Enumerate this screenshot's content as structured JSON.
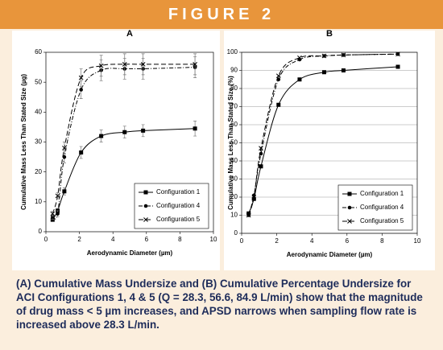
{
  "header": {
    "title": "FIGURE 2"
  },
  "chart_data": [
    {
      "type": "line",
      "title": "A",
      "xlabel": "Aerodynamic Diameter (µm)",
      "ylabel": "Cumulative Mass Less Than Stated Size (µg)",
      "xlim": [
        0,
        10
      ],
      "xticks": [
        0,
        2,
        4,
        6,
        8,
        10
      ],
      "ylim": [
        0,
        60
      ],
      "yticks": [
        0,
        10,
        20,
        30,
        40,
        50,
        60
      ],
      "grid": false,
      "legend": "lower right",
      "x": [
        0.4,
        0.7,
        1.1,
        2.1,
        3.3,
        4.7,
        5.8,
        8.9
      ],
      "series": [
        {
          "name": "Configuration 1",
          "color": "#000000",
          "line_style": "solid",
          "marker": "square",
          "values": [
            4,
            7,
            13.5,
            26.5,
            32,
            33.3,
            33.8,
            34.5
          ],
          "errors": [
            0.5,
            0.8,
            1.2,
            2,
            2,
            2,
            2,
            2.5
          ]
        },
        {
          "name": "Configuration 4",
          "color": "#000000",
          "line_style": "dashdot",
          "marker": "circle",
          "values": [
            5,
            6,
            25,
            47.5,
            54,
            54.5,
            54.5,
            55
          ],
          "errors": [
            0.8,
            1,
            2,
            3,
            3.5,
            3.5,
            3.5,
            3.5
          ]
        },
        {
          "name": "Configuration 5",
          "color": "#000000",
          "line_style": "dashed",
          "marker": "x",
          "values": [
            6,
            12,
            28,
            51.5,
            55.5,
            56,
            56,
            56
          ],
          "errors": [
            0.8,
            1,
            2,
            3,
            3.5,
            3.5,
            3.5,
            3.5
          ]
        }
      ]
    },
    {
      "type": "line",
      "title": "B",
      "xlabel": "Aerodynamic Diameter (µm)",
      "ylabel": "Cumulative Mass Less Than Stated Size (%)",
      "xlim": [
        0,
        10
      ],
      "xticks": [
        0,
        2,
        4,
        6,
        8,
        10
      ],
      "ylim": [
        0,
        100
      ],
      "yticks": [
        0,
        10,
        20,
        30,
        40,
        50,
        60,
        70,
        80,
        90,
        100
      ],
      "grid": true,
      "legend": "lower right",
      "x": [
        0.4,
        0.7,
        1.1,
        2.1,
        3.3,
        4.7,
        5.8,
        8.9
      ],
      "series": [
        {
          "name": "Configuration 1",
          "color": "#000000",
          "line_style": "solid",
          "marker": "square",
          "values": [
            11,
            19,
            37,
            71,
            85,
            89,
            90,
            92
          ]
        },
        {
          "name": "Configuration 4",
          "color": "#000000",
          "line_style": "dashdot",
          "marker": "circle",
          "values": [
            10,
            21,
            44,
            85,
            96,
            98,
            98.5,
            99
          ]
        },
        {
          "name": "Configuration 5",
          "color": "#000000",
          "line_style": "dashed",
          "marker": "x",
          "values": [
            10,
            20,
            47,
            87,
            97,
            98,
            98.5,
            99
          ]
        }
      ]
    }
  ],
  "caption": "(A) Cumulative Mass Undersize and (B) Cumulative Percentage Undersize for ACI Configurations 1, 4 & 5 (Q = 28.3, 56.6, 84.9 L/min) show that the magnitude of drug mass < 5 µm increases, and APSD narrows when sampling flow rate is increased above 28.3 L/min."
}
